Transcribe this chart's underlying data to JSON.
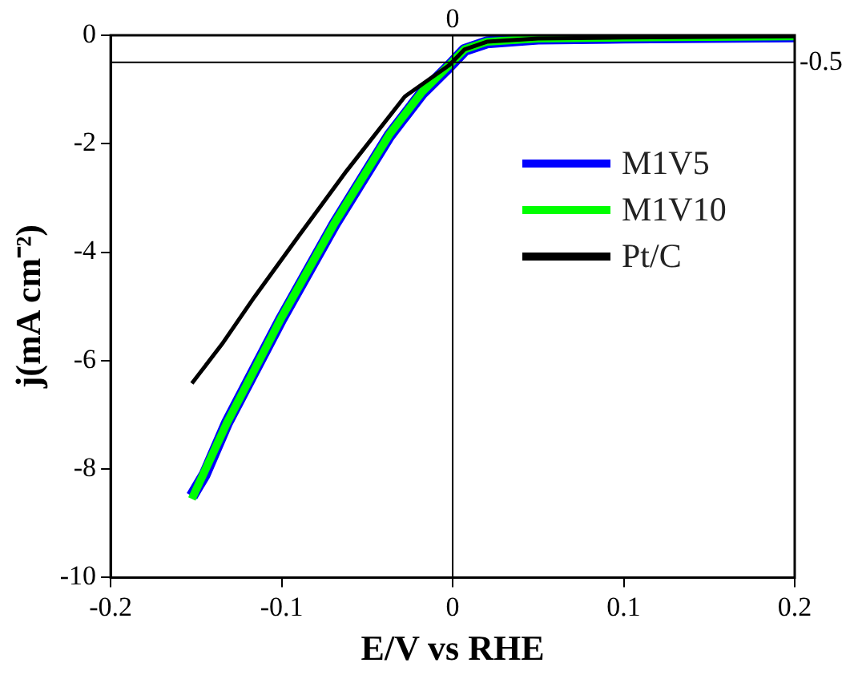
{
  "chart_data": {
    "type": "line",
    "xlabel": "E/V vs RHE",
    "ylabel": "j(mA cm⁻²)",
    "xlim": [
      -0.2,
      0.2
    ],
    "xticks": [
      -0.2,
      -0.1,
      0,
      0.1,
      0.2
    ],
    "ylim": [
      -10,
      0
    ],
    "yticks": [
      -10,
      -8,
      -6,
      -4,
      -2,
      0
    ],
    "grid": false,
    "legend": "right",
    "marker": "none",
    "line_style": "solid",
    "ref_lines": [
      {
        "axis": "x",
        "value": 0,
        "label": "0",
        "color": "#000000"
      },
      {
        "axis": "y",
        "value": -0.5,
        "label": "-0.5",
        "color": "#000000"
      }
    ],
    "series": [
      {
        "name": "M1V5",
        "color": "#0000ff",
        "x": [
          -0.1525,
          -0.145,
          -0.132,
          -0.1,
          -0.069,
          -0.037,
          -0.018,
          -0.002,
          0.007,
          0.02,
          0.05,
          0.1,
          0.2
        ],
        "values": [
          -8.5,
          -8.1,
          -7.15,
          -5.22,
          -3.48,
          -1.85,
          -1.07,
          -0.57,
          -0.27,
          -0.13,
          -0.06,
          -0.04,
          -0.02
        ]
      },
      {
        "name": "M1V10",
        "color": "#00ff00",
        "x": [
          -0.1525,
          -0.132,
          -0.1,
          -0.069,
          -0.037,
          -0.018,
          -0.002,
          0.007,
          0.02,
          0.05,
          0.1,
          0.2
        ],
        "values": [
          -8.55,
          -7.15,
          -5.2,
          -3.46,
          -1.83,
          -1.05,
          -0.55,
          -0.26,
          -0.12,
          -0.06,
          -0.04,
          -0.02
        ]
      },
      {
        "name": "Pt/C",
        "color": "#000000",
        "x": [
          -0.1525,
          -0.135,
          -0.116,
          -0.09,
          -0.062,
          -0.028,
          -0.002,
          0.007,
          0.02,
          0.05,
          0.1,
          0.2
        ],
        "values": [
          -6.42,
          -5.7,
          -4.83,
          -3.7,
          -2.5,
          -1.13,
          -0.55,
          -0.26,
          -0.12,
          -0.06,
          -0.04,
          -0.02
        ]
      }
    ]
  }
}
